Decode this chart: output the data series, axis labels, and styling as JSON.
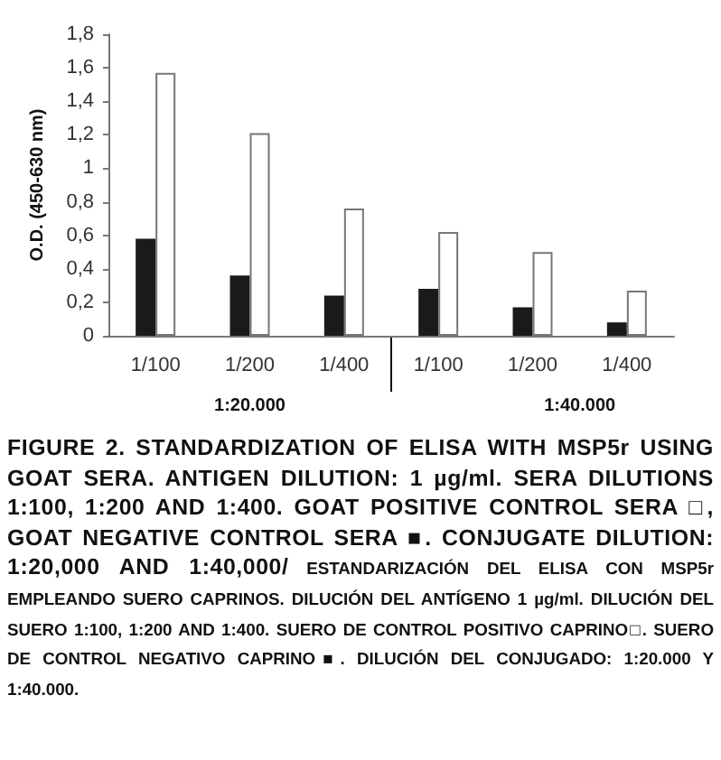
{
  "chart_data": {
    "type": "bar",
    "ylabel": "O.D. (450-630 nm)",
    "categories": [
      "1/100",
      "1/200",
      "1/400",
      "1/100",
      "1/200",
      "1/400"
    ],
    "series": [
      {
        "color": "#1a1a1a",
        "values": [
          0.58,
          0.36,
          0.24,
          0.28,
          0.17,
          0.08
        ]
      },
      {
        "color": "#ffffff",
        "values": [
          1.57,
          1.21,
          0.76,
          0.62,
          0.5,
          0.27
        ]
      }
    ],
    "ylim": [
      0,
      1.8
    ],
    "yticks": [
      {
        "value": 0,
        "label": "0"
      },
      {
        "value": 0.2,
        "label": "0,2"
      },
      {
        "value": 0.4,
        "label": "0,4"
      },
      {
        "value": 0.6,
        "label": "0,6"
      },
      {
        "value": 0.8,
        "label": "0,8"
      },
      {
        "value": 1,
        "label": "1"
      },
      {
        "value": 1.2,
        "label": "1,2"
      },
      {
        "value": 1.4,
        "label": "1,4"
      },
      {
        "value": 1.6,
        "label": "1,6"
      },
      {
        "value": 1.8,
        "label": "1,8"
      }
    ],
    "grid": false,
    "annotations": [
      "1:20.000",
      "1:40.000",
      "FIGURE 2. STANDARDIZATION OF ELISA WITH MSP5r USING GOAT SERA. ANTIGEN DILUTION: 1 µg/ml. SERA DILUTIONS 1:100, 1:200 AND 1:400. GOAT POSITIVE CONTROL SERA □, GOAT NEGATIVE CONTROL SERA ■. CONJUGATE DILUTION: 1:20,000 AND 1:40,000/",
      "ESTANDARIZACIÓN DEL ELISA CON MSP5r EMPLEANDO SUERO CAPRINOS. DILUCIÓN DEL ANTÍGENO 1 µg/ml. DILUCIÓN DEL SUERO 1:100, 1:200 AND 1:400. SUERO DE CONTROL POSITIVO CAPRINO□. SUERO DE CONTROL NEGATIVO CAPRINO■. DILUCIÓN DEL CONJUGADO: 1:20.000 Y 1:40.000."
    ]
  }
}
